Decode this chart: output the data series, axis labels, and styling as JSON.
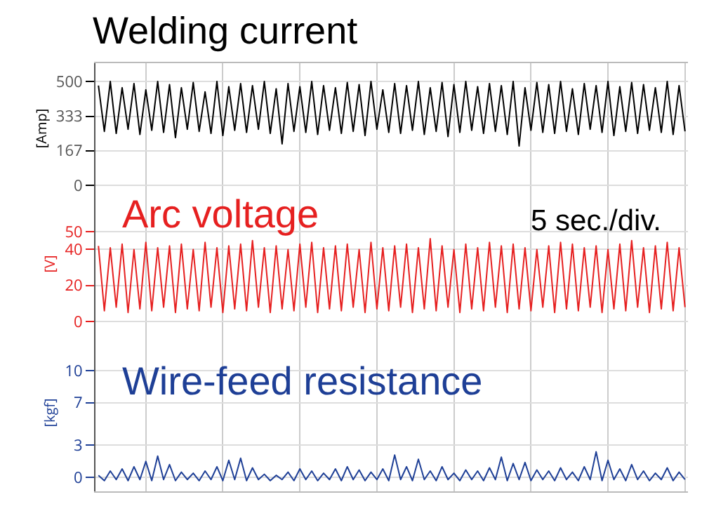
{
  "chart_data": [
    {
      "type": "line",
      "title": "Welding current",
      "ylabel": "[Amp]",
      "tick_labels": "y",
      "grid": true,
      "ylim": [
        -40,
        588
      ],
      "yticks": [
        0,
        167,
        333,
        500
      ],
      "categories": [
        null,
        null,
        null,
        null,
        null,
        null,
        null,
        null,
        null,
        null,
        null,
        null,
        null,
        null,
        null,
        null,
        null,
        null,
        null,
        null,
        null,
        null,
        null,
        null,
        null,
        null,
        null,
        null,
        null,
        null,
        null,
        null,
        null,
        null,
        null,
        null,
        null,
        null,
        null,
        null,
        null,
        null,
        null,
        null,
        null,
        null,
        null,
        null,
        null,
        null,
        null,
        null,
        null,
        null,
        null,
        null,
        null,
        null,
        null,
        null,
        null,
        null,
        null,
        null,
        null,
        null,
        null,
        null,
        null,
        null,
        null,
        null,
        null,
        null,
        null,
        null,
        null,
        null,
        null,
        null,
        null,
        null,
        null,
        null,
        null,
        null,
        null,
        null,
        null,
        null,
        null,
        null,
        null,
        null,
        null,
        null,
        null,
        null,
        null,
        null
      ],
      "series": [
        {
          "color": "#000000",
          "values": [
            480,
            260,
            500,
            250,
            470,
            270,
            490,
            245,
            460,
            265,
            500,
            255,
            485,
            230,
            470,
            270,
            495,
            260,
            450,
            250,
            500,
            240,
            475,
            265,
            490,
            255,
            480,
            270,
            500,
            250,
            465,
            200,
            490,
            260,
            475,
            255,
            500,
            245,
            480,
            265,
            470,
            250,
            495,
            260,
            485,
            240,
            500,
            270,
            460,
            255,
            490,
            250,
            480,
            265,
            500,
            245,
            470,
            260,
            495,
            235,
            485,
            255,
            500,
            265,
            475,
            250,
            490,
            260,
            480,
            245,
            500,
            190,
            470,
            265,
            495,
            255,
            485,
            250,
            500,
            260,
            465,
            245,
            490,
            270,
            480,
            255,
            500,
            240,
            475,
            260,
            495,
            250,
            485,
            265,
            470,
            255,
            500,
            245,
            480,
            260
          ]
        }
      ]
    },
    {
      "type": "line",
      "title": "Arc voltage",
      "ylabel": "[V]",
      "tick_labels": "y",
      "grid": true,
      "ylim": [
        -7,
        71
      ],
      "yticks": [
        0,
        20,
        40,
        50
      ],
      "annotations": [
        "5 sec./div."
      ],
      "categories": [
        null,
        null,
        null,
        null,
        null,
        null,
        null,
        null,
        null,
        null,
        null,
        null,
        null,
        null,
        null,
        null,
        null,
        null,
        null,
        null,
        null,
        null,
        null,
        null,
        null,
        null,
        null,
        null,
        null,
        null,
        null,
        null,
        null,
        null,
        null,
        null,
        null,
        null,
        null,
        null,
        null,
        null,
        null,
        null,
        null,
        null,
        null,
        null,
        null,
        null,
        null,
        null,
        null,
        null,
        null,
        null,
        null,
        null,
        null,
        null,
        null,
        null,
        null,
        null,
        null,
        null,
        null,
        null,
        null,
        null,
        null,
        null,
        null,
        null,
        null,
        null,
        null,
        null,
        null,
        null,
        null,
        null,
        null,
        null,
        null,
        null,
        null,
        null,
        null,
        null,
        null,
        null,
        null,
        null,
        null,
        null,
        null,
        null,
        null,
        null
      ],
      "series": [
        {
          "color": "#e62020",
          "values": [
            42,
            6,
            41,
            8,
            43,
            5,
            40,
            7,
            44,
            6,
            41,
            8,
            42,
            5,
            43,
            7,
            40,
            6,
            44,
            8,
            41,
            5,
            42,
            7,
            43,
            6,
            45,
            8,
            41,
            5,
            42,
            7,
            40,
            6,
            43,
            8,
            44,
            5,
            41,
            7,
            42,
            6,
            43,
            8,
            40,
            5,
            44,
            7,
            41,
            6,
            42,
            8,
            43,
            5,
            41,
            7,
            46,
            6,
            42,
            8,
            40,
            5,
            43,
            7,
            41,
            6,
            44,
            8,
            42,
            5,
            43,
            7,
            41,
            6,
            40,
            8,
            42,
            5,
            44,
            7,
            43,
            6,
            41,
            8,
            42,
            5,
            40,
            7,
            43,
            6,
            45,
            8,
            41,
            5,
            42,
            7,
            44,
            6,
            41,
            8
          ]
        }
      ]
    },
    {
      "type": "line",
      "title": "Wire-feed resistance",
      "ylabel": "[kgf]",
      "tick_labels": "y",
      "grid": true,
      "ylim": [
        -1.3,
        13.4
      ],
      "yticks": [
        0,
        3,
        7,
        10
      ],
      "categories": [
        null,
        null,
        null,
        null,
        null,
        null,
        null,
        null,
        null,
        null,
        null,
        null,
        null,
        null,
        null,
        null,
        null,
        null,
        null,
        null,
        null,
        null,
        null,
        null,
        null,
        null,
        null,
        null,
        null,
        null,
        null,
        null,
        null,
        null,
        null,
        null,
        null,
        null,
        null,
        null,
        null,
        null,
        null,
        null,
        null,
        null,
        null,
        null,
        null,
        null,
        null,
        null,
        null,
        null,
        null,
        null,
        null,
        null,
        null,
        null,
        null,
        null,
        null,
        null,
        null,
        null,
        null,
        null,
        null,
        null,
        null,
        null,
        null,
        null,
        null,
        null,
        null,
        null,
        null,
        null,
        null,
        null,
        null,
        null,
        null,
        null,
        null,
        null,
        null,
        null,
        null,
        null,
        null,
        null,
        null,
        null,
        null,
        null,
        null,
        null
      ],
      "series": [
        {
          "color": "#1e3f96",
          "values": [
            0.2,
            -0.3,
            0.6,
            -0.2,
            0.8,
            -0.3,
            1.0,
            -0.2,
            1.5,
            -0.3,
            2.0,
            -0.2,
            1.2,
            -0.3,
            0.5,
            -0.2,
            0.4,
            -0.3,
            0.6,
            -0.2,
            1.0,
            -0.3,
            1.6,
            -0.2,
            1.8,
            -0.3,
            0.9,
            -0.2,
            0.3,
            -0.3,
            0.2,
            -0.2,
            0.5,
            -0.3,
            0.8,
            -0.2,
            0.6,
            -0.3,
            0.4,
            -0.2,
            0.8,
            -0.3,
            1.0,
            -0.2,
            0.7,
            -0.3,
            0.5,
            -0.2,
            0.8,
            -0.3,
            2.1,
            -0.2,
            1.0,
            -0.3,
            1.7,
            -0.2,
            0.6,
            -0.3,
            1.0,
            -0.2,
            0.4,
            -0.3,
            0.7,
            -0.2,
            0.6,
            -0.3,
            0.9,
            -0.2,
            1.9,
            -0.3,
            1.3,
            -0.2,
            1.4,
            -0.3,
            0.7,
            -0.2,
            0.6,
            -0.3,
            0.9,
            -0.2,
            0.5,
            -0.3,
            1.0,
            -0.2,
            2.4,
            -0.3,
            1.6,
            -0.2,
            0.8,
            -0.3,
            1.2,
            -0.2,
            0.6,
            -0.3,
            0.4,
            -0.2,
            0.9,
            -0.3,
            0.5,
            -0.2
          ]
        }
      ]
    }
  ]
}
